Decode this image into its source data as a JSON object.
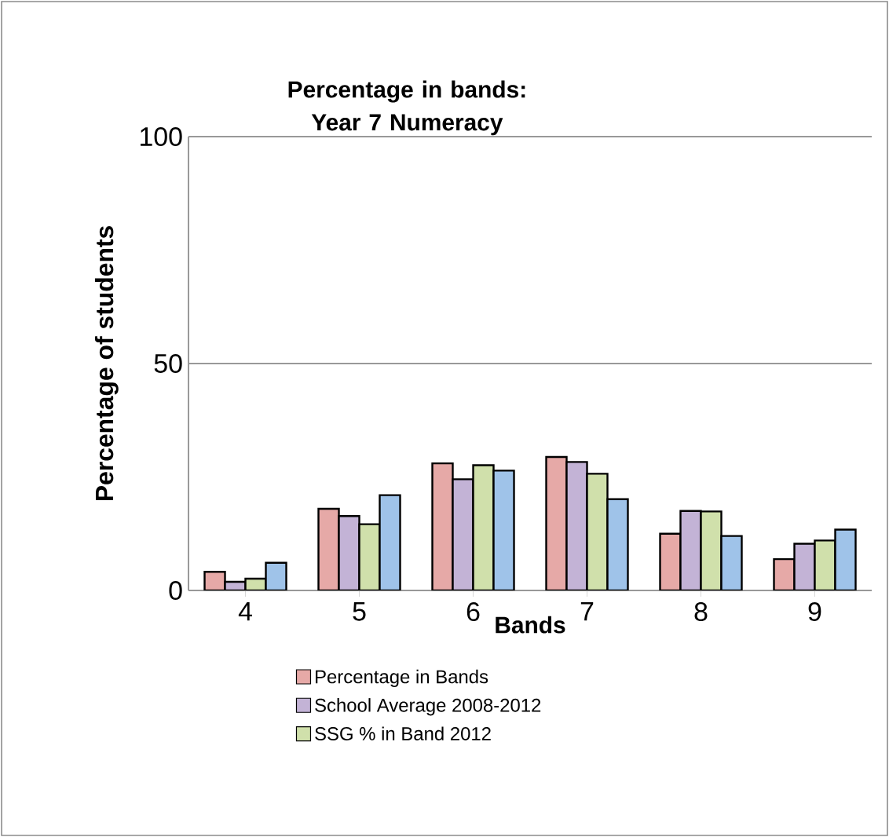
{
  "chart_data": {
    "type": "bar",
    "title": "Percentage in bands: Year 7 Numeracy",
    "xlabel": "Bands",
    "ylabel": "Percentage of students",
    "categories": [
      "4",
      "5",
      "6",
      "7",
      "8",
      "9"
    ],
    "series": [
      {
        "name": "Percentage in Bands",
        "color": "#e6a9a7",
        "values": [
          4.1,
          18.0,
          28.0,
          29.4,
          12.5,
          6.9
        ]
      },
      {
        "name": "School Average 2008-2012",
        "color": "#c3b3d6",
        "values": [
          1.9,
          16.4,
          24.5,
          28.3,
          17.5,
          10.3
        ]
      },
      {
        "name": "SSG % in Band 2012",
        "color": "#d0e0ab",
        "values": [
          2.6,
          14.6,
          27.6,
          25.7,
          17.4,
          11.0
        ]
      },
      {
        "color": "#9fc3e9",
        "values": [
          6.1,
          21.0,
          26.4,
          20.1,
          12.0,
          13.4
        ]
      }
    ],
    "ylim": [
      0,
      100
    ],
    "yticks": [
      0,
      50,
      100
    ],
    "grid": "y",
    "legend": "bottom"
  }
}
